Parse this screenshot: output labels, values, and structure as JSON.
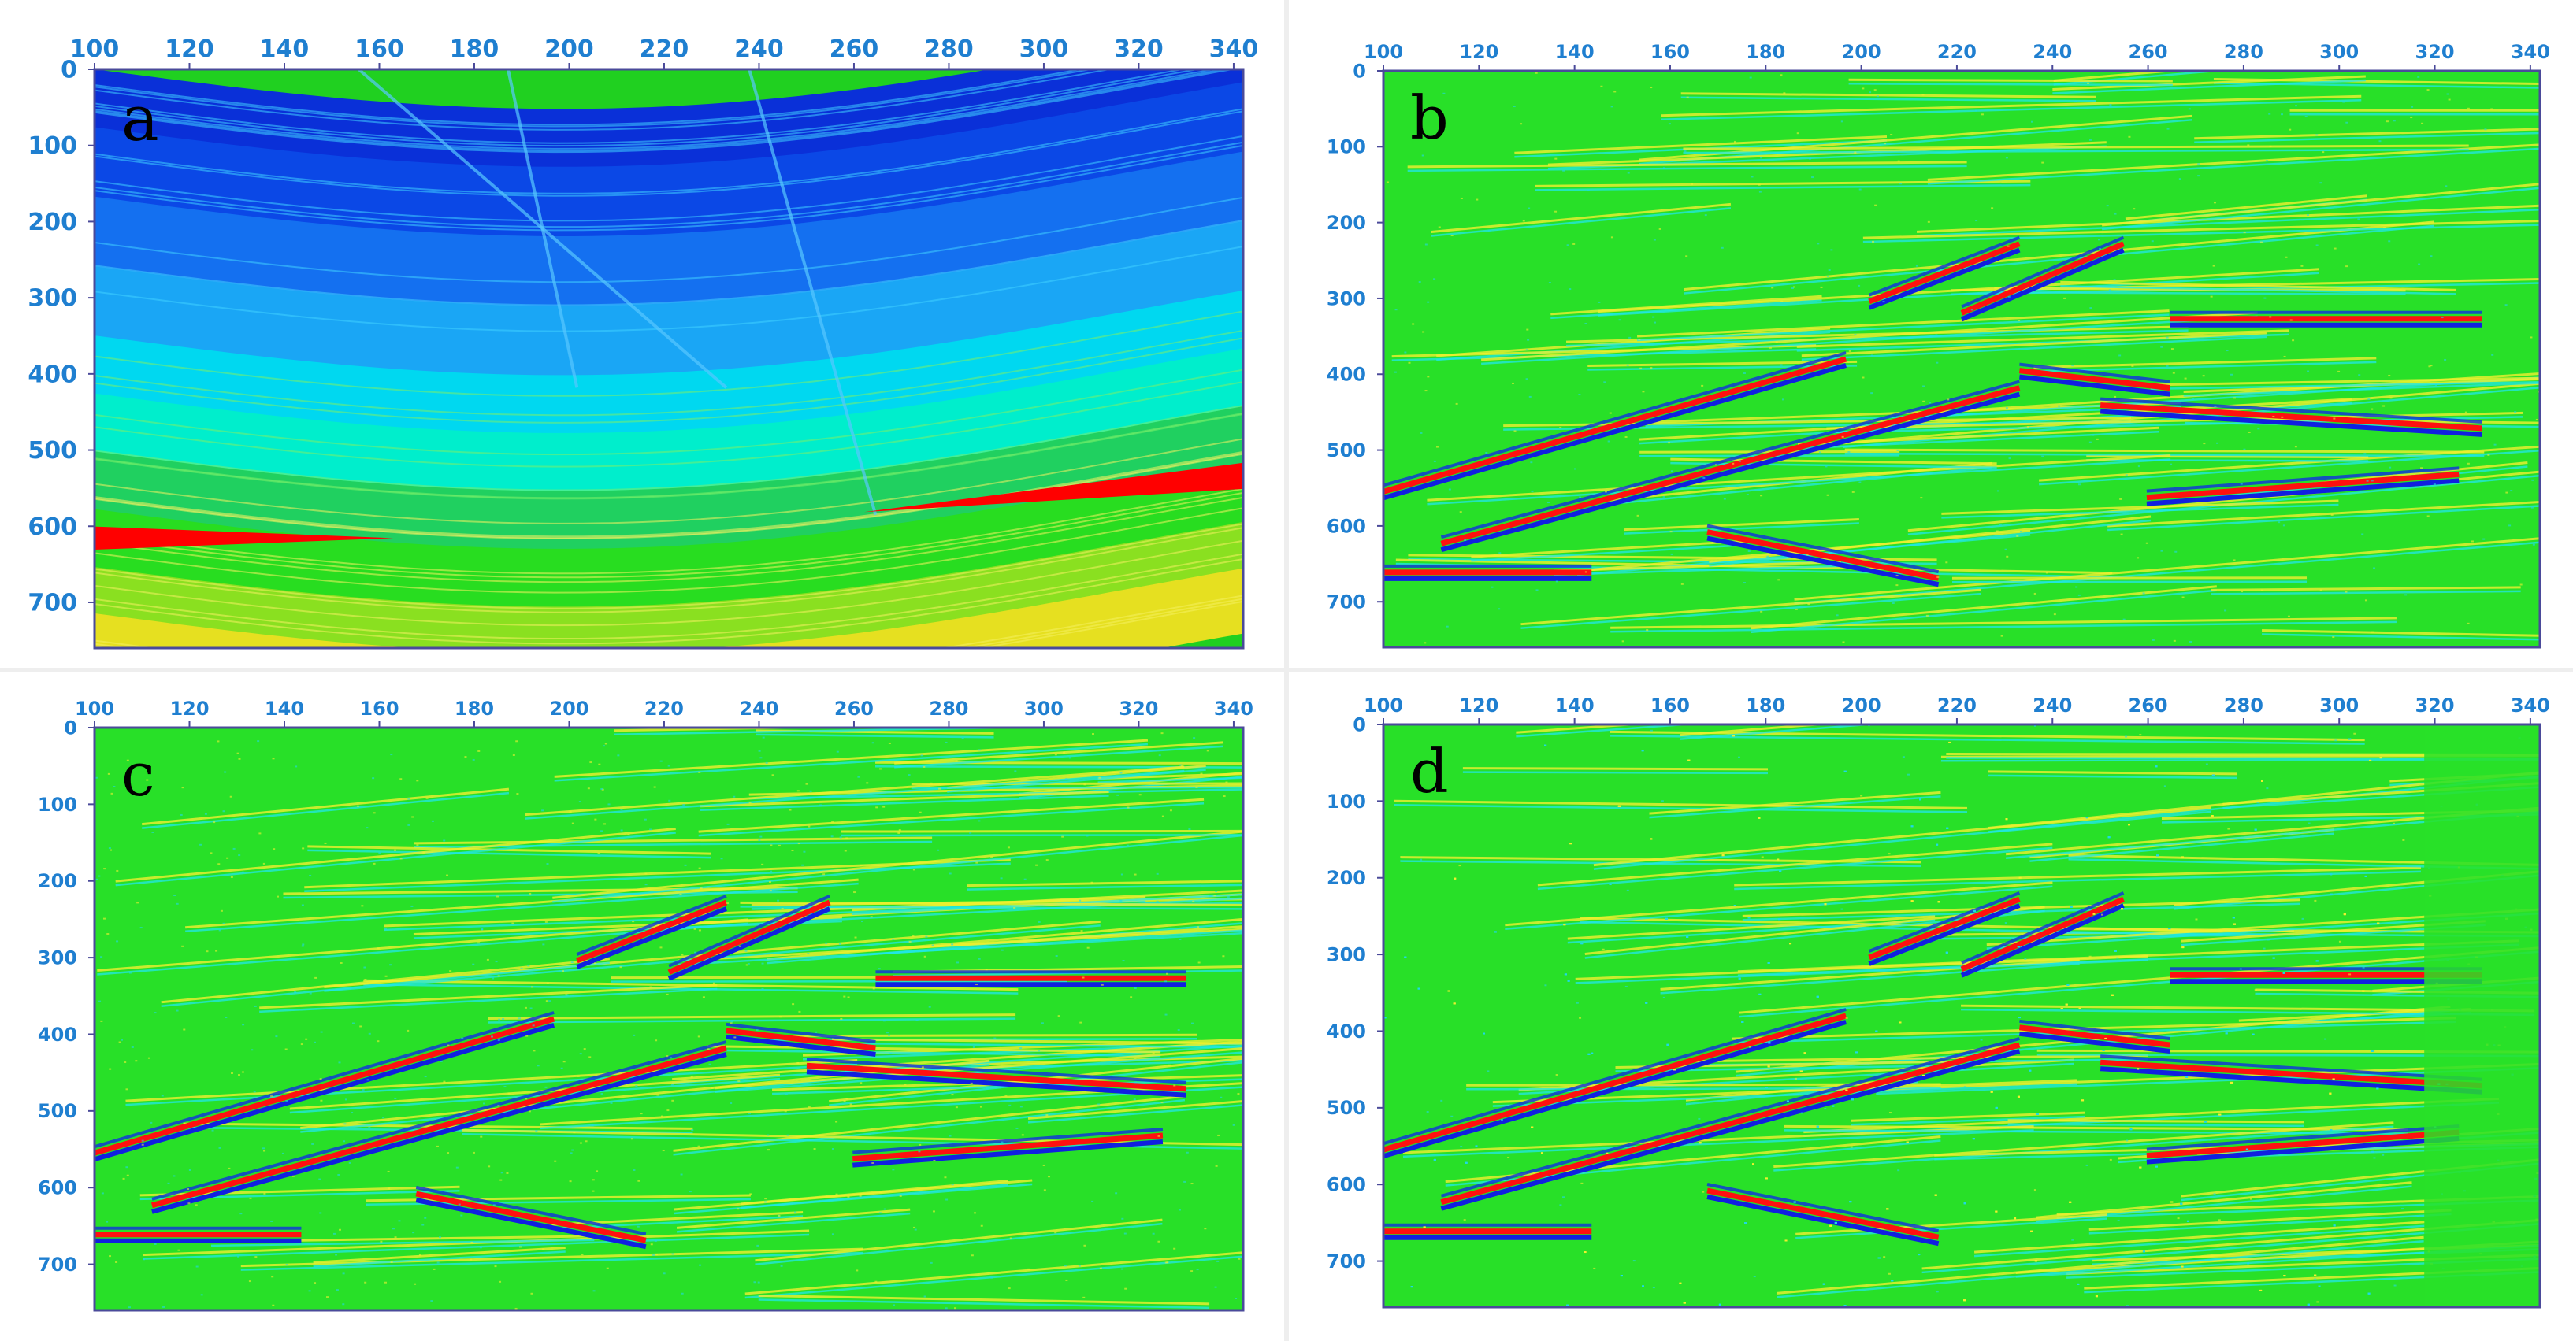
{
  "figure": {
    "panels": [
      {
        "id": "a",
        "letter": "a",
        "style": "velocity",
        "x_ticks": [
          "100",
          "120",
          "140",
          "160",
          "180",
          "200",
          "220",
          "240",
          "260",
          "280",
          "300",
          "320",
          "340"
        ],
        "y_ticks": [
          "0",
          "100",
          "200",
          "300",
          "400",
          "500",
          "600",
          "700"
        ],
        "x_range": [
          100,
          342
        ],
        "y_range": [
          0,
          760
        ]
      },
      {
        "id": "b",
        "letter": "b",
        "style": "image-smooth",
        "x_ticks": [
          "100",
          "120",
          "140",
          "160",
          "180",
          "200",
          "220",
          "240",
          "260",
          "280",
          "300",
          "320",
          "340"
        ],
        "y_ticks": [
          "0",
          "100",
          "200",
          "300",
          "400",
          "500",
          "600",
          "700"
        ],
        "x_range": [
          100,
          342
        ],
        "y_range": [
          0,
          760
        ]
      },
      {
        "id": "c",
        "letter": "c",
        "style": "image-medium",
        "x_ticks": [
          "100",
          "120",
          "140",
          "160",
          "180",
          "200",
          "220",
          "240",
          "260",
          "280",
          "300",
          "320",
          "340"
        ],
        "y_ticks": [
          "0",
          "100",
          "200",
          "300",
          "400",
          "500",
          "600",
          "700"
        ],
        "x_range": [
          100,
          342
        ],
        "y_range": [
          0,
          760
        ]
      },
      {
        "id": "d",
        "letter": "d",
        "style": "image-noisy",
        "x_ticks": [
          "100",
          "120",
          "140",
          "160",
          "180",
          "200",
          "220",
          "240",
          "260",
          "280",
          "300",
          "320",
          "340"
        ],
        "y_ticks": [
          "0",
          "100",
          "200",
          "300",
          "400",
          "500",
          "600",
          "700"
        ],
        "x_range": [
          100,
          342
        ],
        "y_range": [
          0,
          760
        ]
      }
    ],
    "colors": {
      "tick_label": "#1f7fd0",
      "frame": "#4a4a9a",
      "deep_blue": "#0a3ee0",
      "cyan": "#00e8f0",
      "green": "#22dd22",
      "yellow": "#f0f020",
      "red": "#ff0000"
    }
  }
}
